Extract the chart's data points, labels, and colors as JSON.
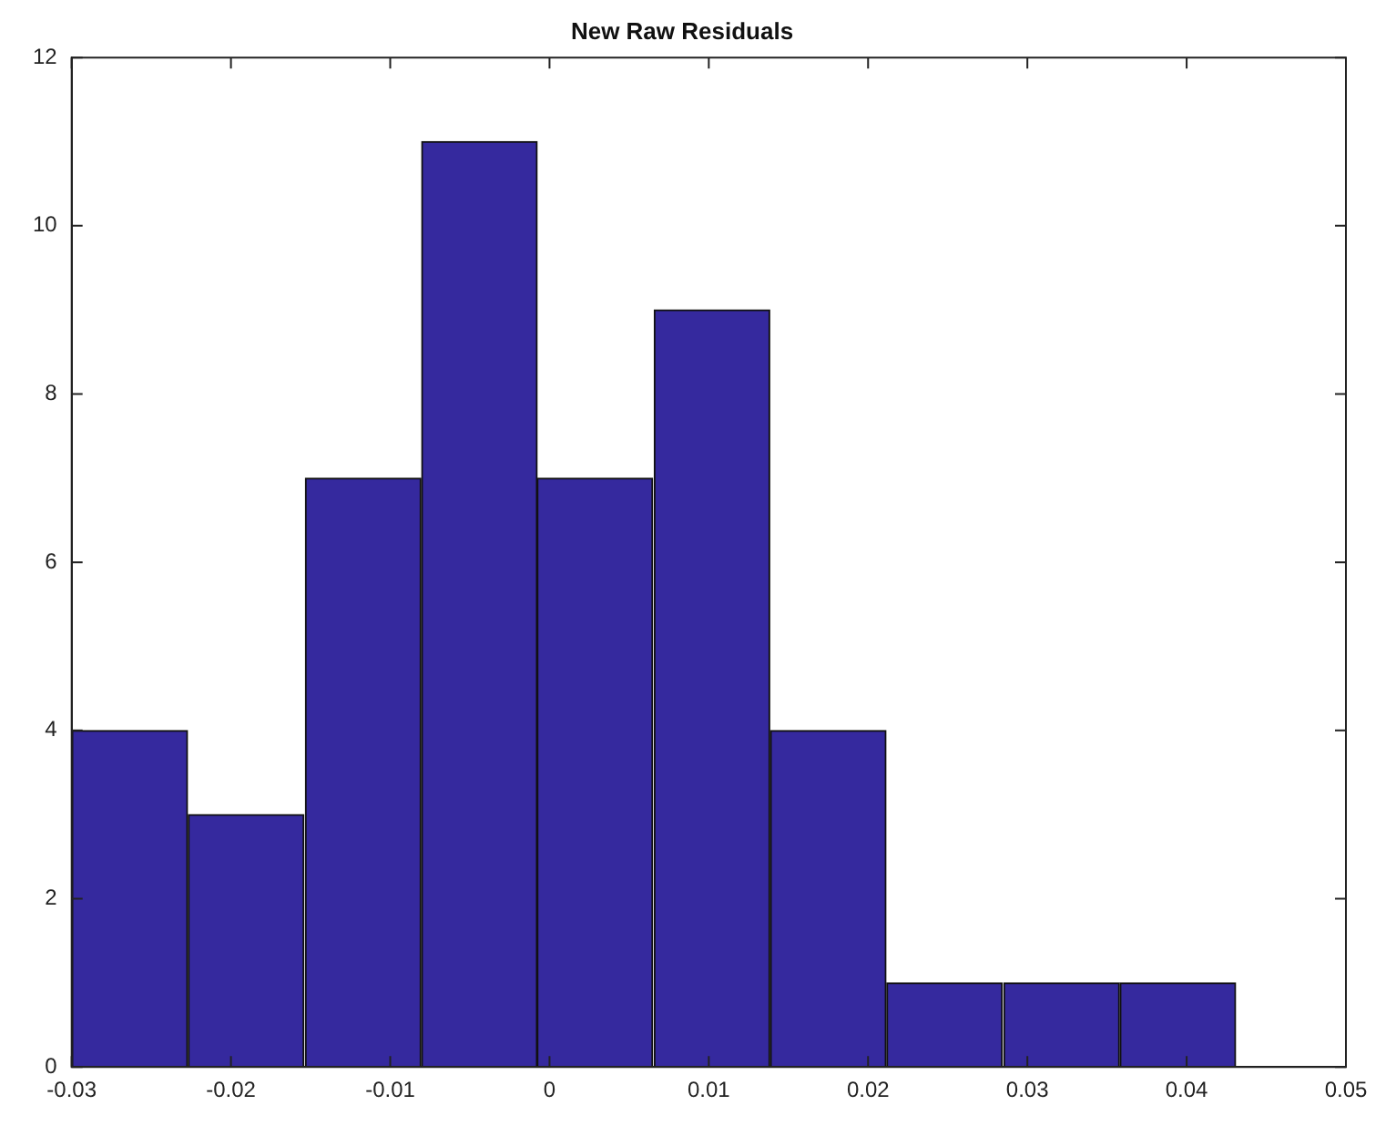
{
  "chart_data": {
    "type": "histogram",
    "title": "New Raw Residuals",
    "bins": [
      -0.03,
      -0.0227,
      -0.0154,
      -0.008,
      -0.0008,
      0.0065,
      0.0139,
      0.0211,
      0.0285,
      0.0358,
      0.0431
    ],
    "values": [
      4,
      3,
      7,
      11,
      7,
      9,
      4,
      1,
      1,
      1
    ],
    "color": "#35299e",
    "xlim": [
      -0.03,
      0.05
    ],
    "xticks": [
      -0.03,
      -0.02,
      -0.01,
      0,
      0.01,
      0.02,
      0.03,
      0.04,
      0.05
    ],
    "ylim": [
      0,
      12
    ],
    "yticks": [
      0,
      2,
      4,
      6,
      8,
      10,
      12
    ],
    "grid": false,
    "legend": false
  }
}
